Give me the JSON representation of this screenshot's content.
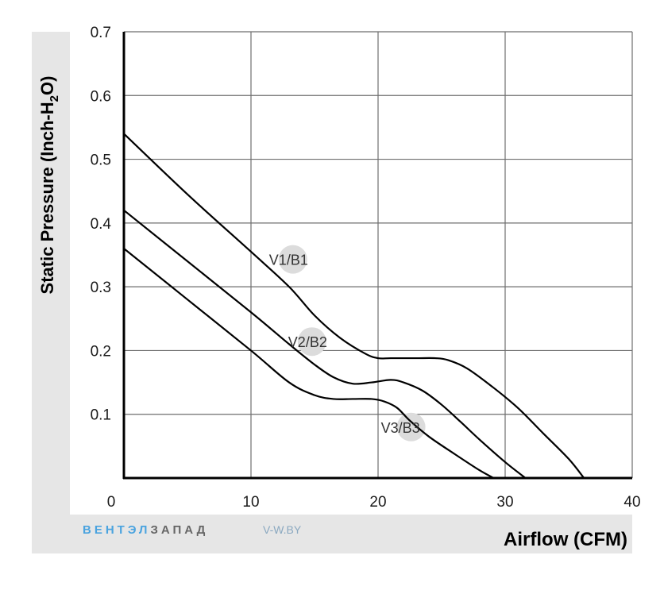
{
  "chart_data": {
    "type": "line",
    "xlabel": "Airflow (CFM)",
    "ylabel_parts": [
      "Static Pressure (Inch-H",
      "2",
      "O)"
    ],
    "xlim": [
      0,
      40
    ],
    "ylim": [
      0,
      0.7
    ],
    "x_ticks": [
      "0",
      "10",
      "20",
      "30",
      "40"
    ],
    "y_ticks": [
      "0.1",
      "0.2",
      "0.3",
      "0.4",
      "0.5",
      "0.6",
      "0.7"
    ],
    "grid": true,
    "series": [
      {
        "name": "V1/B1",
        "x": [
          0,
          5,
          10,
          13,
          15,
          17,
          19,
          20,
          21,
          23,
          24.5,
          25.5,
          27,
          29,
          31,
          33,
          35,
          36.2
        ],
        "y": [
          0.54,
          0.445,
          0.355,
          0.3,
          0.255,
          0.22,
          0.195,
          0.188,
          0.188,
          0.188,
          0.188,
          0.185,
          0.172,
          0.143,
          0.11,
          0.07,
          0.03,
          0.0
        ]
      },
      {
        "name": "V2/B2",
        "x": [
          0,
          5,
          10,
          13,
          15,
          16.5,
          18,
          19.5,
          21,
          22,
          23.5,
          25,
          26.5,
          28,
          30,
          31.6
        ],
        "y": [
          0.42,
          0.34,
          0.26,
          0.21,
          0.178,
          0.158,
          0.148,
          0.15,
          0.154,
          0.15,
          0.137,
          0.115,
          0.088,
          0.06,
          0.025,
          0.0
        ]
      },
      {
        "name": "V3/B3",
        "x": [
          0,
          5,
          10,
          13,
          15,
          16.5,
          18,
          19.5,
          20.5,
          21.5,
          22.5,
          24,
          26,
          28,
          29.1
        ],
        "y": [
          0.36,
          0.28,
          0.2,
          0.15,
          0.13,
          0.124,
          0.124,
          0.124,
          0.12,
          0.11,
          0.09,
          0.065,
          0.038,
          0.012,
          0.0
        ]
      }
    ],
    "annotations": [
      {
        "text": "V1/B1",
        "x": 13.3,
        "y": 0.343
      },
      {
        "text": "V2/B2",
        "x": 14.8,
        "y": 0.214
      },
      {
        "text": "V3/B3",
        "x": 22.6,
        "y": 0.08
      }
    ]
  },
  "watermark": {
    "brand_part1": "ВЕНТЭЛ",
    "brand_part2": "ЗАПАД",
    "site": "V-W.BY"
  },
  "colors": {
    "frame": "#e6e6e6",
    "line": "#000000",
    "grid": "#6e6e6e",
    "bubble": "#dcdcdc",
    "brand_blue": "#4aa3df",
    "brand_gray": "#666666",
    "site_gray": "#8aa8c0"
  }
}
